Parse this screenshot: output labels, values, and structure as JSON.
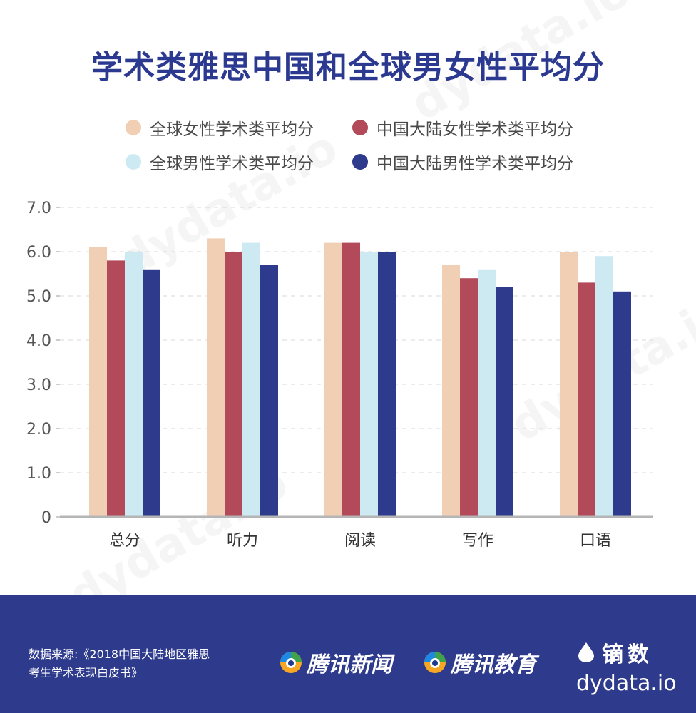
{
  "title": "学术类雅思中国和全球男女性平均分",
  "watermark": "dydata.io",
  "legend": [
    {
      "label": "全球女性学术类平均分",
      "color": "#f1cfb5"
    },
    {
      "label": "中国大陆女性学术类平均分",
      "color": "#b34a5a"
    },
    {
      "label": "全球男性学术类平均分",
      "color": "#cdeaf3"
    },
    {
      "label": "中国大陆男性学术类平均分",
      "color": "#2e3a8c"
    }
  ],
  "chart_data": {
    "type": "bar",
    "categories": [
      "总分",
      "听力",
      "阅读",
      "写作",
      "口语"
    ],
    "series": [
      {
        "name": "全球女性学术类平均分",
        "values": [
          6.1,
          6.3,
          6.2,
          5.7,
          6.0
        ],
        "color": "#f1cfb5"
      },
      {
        "name": "中国大陆女性学术类平均分",
        "values": [
          5.8,
          6.0,
          6.2,
          5.4,
          5.3
        ],
        "color": "#b34a5a"
      },
      {
        "name": "全球男性学术类平均分",
        "values": [
          6.0,
          6.2,
          6.0,
          5.6,
          5.9
        ],
        "color": "#cdeaf3"
      },
      {
        "name": "中国大陆男性学术类平均分",
        "values": [
          5.6,
          5.7,
          6.0,
          5.2,
          5.1
        ],
        "color": "#2e3a8c"
      }
    ],
    "yticks": [
      "0",
      "1.0",
      "2.0",
      "3.0",
      "4.0",
      "5.0",
      "6.0",
      "7.0"
    ],
    "ylim": [
      0,
      7
    ],
    "grid": true,
    "legend_position": "top"
  },
  "footer": {
    "source_line1": "数据来源:《2018中国大陆地区雅思",
    "source_line2": "考生学术表现白皮书》",
    "partner1": "腾讯新闻",
    "partner2": "腾讯教育",
    "brand_name": "镝数",
    "brand_url": "dydata.io",
    "background": "#2e3a8c"
  }
}
